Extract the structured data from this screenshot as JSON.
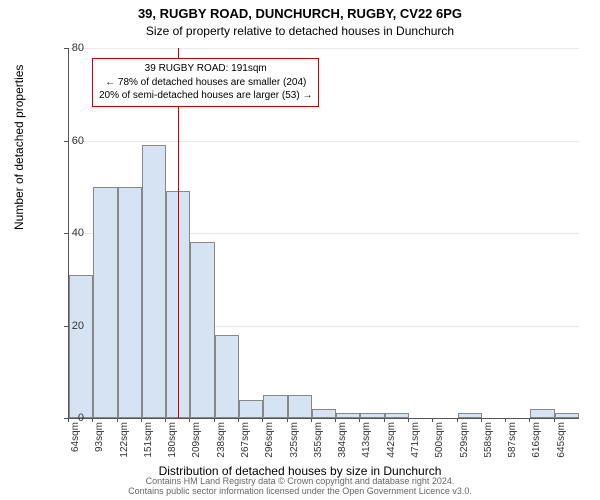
{
  "title_line1": "39, RUGBY ROAD, DUNCHURCH, RUGBY, CV22 6PG",
  "title_line2": "Size of property relative to detached houses in Dunchurch",
  "y_axis_label": "Number of detached properties",
  "x_axis_label": "Distribution of detached houses by size in Dunchurch",
  "footer_line1": "Contains HM Land Registry data © Crown copyright and database right 2024.",
  "footer_line2": "Contains public sector information licensed under the Open Government Licence v3.0.",
  "annotation": {
    "line1": "39 RUGBY ROAD: 191sqm",
    "line2": "← 78% of detached houses are smaller (204)",
    "line3": "20% of semi-detached houses are larger (53) →"
  },
  "chart": {
    "type": "histogram",
    "y_min": 0,
    "y_max": 80,
    "y_tick_step": 20,
    "y_ticks": [
      0,
      20,
      40,
      60,
      80
    ],
    "x_categories": [
      "64sqm",
      "93sqm",
      "122sqm",
      "151sqm",
      "180sqm",
      "209sqm",
      "238sqm",
      "267sqm",
      "296sqm",
      "325sqm",
      "355sqm",
      "384sqm",
      "413sqm",
      "442sqm",
      "471sqm",
      "500sqm",
      "529sqm",
      "558sqm",
      "587sqm",
      "616sqm",
      "645sqm"
    ],
    "bar_values": [
      31,
      50,
      50,
      59,
      49,
      38,
      18,
      4,
      5,
      5,
      2,
      1,
      1,
      1,
      0,
      0,
      1,
      0,
      0,
      2,
      1
    ],
    "bar_fill_color": "#d6e3f3",
    "bar_border_color": "#888888",
    "grid_color": "#e8e8e8",
    "reference_line_color": "#cc0000",
    "reference_x_value": 191,
    "x_numeric_min": 64,
    "x_numeric_max": 660,
    "background_color": "#ffffff",
    "title_fontsize": 13,
    "subtitle_fontsize": 12,
    "axis_label_fontsize": 12,
    "tick_fontsize": 11,
    "annotation_fontsize": 10,
    "footer_fontsize": 9
  }
}
